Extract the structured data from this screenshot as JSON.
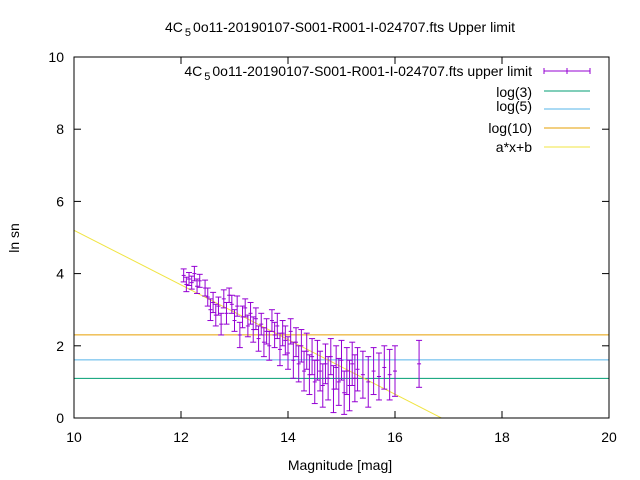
{
  "chart_data": {
    "type": "scatter",
    "title": "4C_5 0o11-20190107-S001-R001-I-024707.fts Upper limit",
    "title_parts": {
      "prefix": "4C",
      "subscript": "5",
      "suffix": "0o11-20190107-S001-R001-I-024707.fts Upper limit"
    },
    "xlabel": "Magnitude [mag]",
    "ylabel": "ln sn",
    "xlim": [
      10,
      20
    ],
    "ylim": [
      0,
      10
    ],
    "xticks": [
      10,
      12,
      14,
      16,
      18,
      20
    ],
    "yticks": [
      0,
      2,
      4,
      6,
      8,
      10
    ],
    "grid": false,
    "legend_position": "top-right",
    "colors": {
      "points": "#9400d3",
      "log3": "#009e73",
      "log5": "#56b4e9",
      "log10": "#e69f00",
      "fit": "#f0e442"
    },
    "legend": [
      {
        "key": "points",
        "label_parts": {
          "prefix": "4C",
          "subscript": "5",
          "suffix": "0o11-20190107-S001-R001-I-024707.fts upper limit"
        },
        "style": "errorbar"
      },
      {
        "key": "log3",
        "label": "log(3)",
        "style": "line"
      },
      {
        "key": "log5",
        "label": "log(5)",
        "style": "line"
      },
      {
        "key": "log10",
        "label": "log(10)",
        "style": "line"
      },
      {
        "key": "fit",
        "label": "a*x+b",
        "style": "line"
      }
    ],
    "hlines": {
      "log3": 1.0986,
      "log5": 1.6094,
      "log10": 2.3026
    },
    "fit_line": {
      "slope": -0.757,
      "intercept": 12.77
    },
    "series": [
      {
        "name": "4C 5 0o11-20190107-S001-R001-I-024707.fts upper limit",
        "points": [
          [
            12.05,
            3.95,
            0.18
          ],
          [
            12.1,
            3.7,
            0.2
          ],
          [
            12.15,
            3.85,
            0.18
          ],
          [
            12.2,
            3.75,
            0.18
          ],
          [
            12.25,
            4.0,
            0.2
          ],
          [
            12.3,
            3.65,
            0.2
          ],
          [
            12.35,
            3.8,
            0.18
          ],
          [
            12.45,
            3.6,
            0.22
          ],
          [
            12.5,
            3.35,
            0.25
          ],
          [
            12.55,
            3.0,
            0.3
          ],
          [
            12.6,
            3.2,
            0.28
          ],
          [
            12.65,
            2.85,
            0.3
          ],
          [
            12.7,
            3.1,
            0.25
          ],
          [
            12.75,
            2.6,
            0.3
          ],
          [
            12.8,
            3.3,
            0.25
          ],
          [
            12.85,
            2.9,
            0.3
          ],
          [
            12.9,
            3.4,
            0.2
          ],
          [
            12.95,
            3.15,
            0.25
          ],
          [
            13.0,
            2.7,
            0.3
          ],
          [
            13.05,
            3.1,
            0.28
          ],
          [
            13.1,
            2.3,
            0.35
          ],
          [
            13.15,
            2.8,
            0.3
          ],
          [
            13.2,
            3.05,
            0.25
          ],
          [
            13.25,
            2.55,
            0.3
          ],
          [
            13.3,
            2.9,
            0.3
          ],
          [
            13.35,
            2.45,
            0.35
          ],
          [
            13.4,
            2.75,
            0.3
          ],
          [
            13.45,
            2.2,
            0.35
          ],
          [
            13.5,
            2.6,
            0.3
          ],
          [
            13.55,
            2.1,
            0.4
          ],
          [
            13.6,
            2.4,
            0.35
          ],
          [
            13.65,
            2.0,
            0.4
          ],
          [
            13.7,
            2.7,
            0.3
          ],
          [
            13.75,
            2.3,
            0.35
          ],
          [
            13.8,
            2.55,
            0.35
          ],
          [
            13.85,
            1.9,
            0.45
          ],
          [
            13.9,
            2.35,
            0.35
          ],
          [
            13.95,
            2.15,
            0.4
          ],
          [
            14.0,
            1.8,
            0.45
          ],
          [
            14.05,
            2.4,
            0.35
          ],
          [
            14.1,
            1.6,
            0.5
          ],
          [
            14.15,
            2.1,
            0.4
          ],
          [
            14.2,
            1.5,
            0.5
          ],
          [
            14.25,
            2.0,
            0.45
          ],
          [
            14.3,
            1.3,
            0.55
          ],
          [
            14.35,
            1.85,
            0.5
          ],
          [
            14.4,
            1.2,
            0.55
          ],
          [
            14.45,
            1.7,
            0.5
          ],
          [
            14.5,
            1.0,
            0.6
          ],
          [
            14.55,
            1.6,
            0.55
          ],
          [
            14.6,
            1.3,
            0.55
          ],
          [
            14.65,
            0.9,
            0.6
          ],
          [
            14.7,
            1.5,
            0.55
          ],
          [
            14.75,
            1.1,
            0.6
          ],
          [
            14.8,
            1.7,
            0.5
          ],
          [
            14.85,
            0.8,
            0.65
          ],
          [
            14.9,
            1.4,
            0.6
          ],
          [
            14.95,
            1.0,
            0.65
          ],
          [
            15.0,
            1.6,
            0.55
          ],
          [
            15.05,
            0.7,
            0.6
          ],
          [
            15.1,
            1.3,
            0.65
          ],
          [
            15.15,
            0.9,
            0.7
          ],
          [
            15.2,
            1.5,
            0.6
          ],
          [
            15.25,
            1.1,
            0.65
          ],
          [
            15.3,
            1.35,
            0.6
          ],
          [
            15.4,
            1.2,
            0.65
          ],
          [
            15.5,
            1.0,
            0.7
          ],
          [
            15.6,
            1.3,
            0.65
          ],
          [
            15.7,
            1.15,
            0.65
          ],
          [
            15.8,
            1.4,
            0.6
          ],
          [
            15.9,
            1.2,
            0.7
          ],
          [
            16.0,
            1.3,
            0.7
          ],
          [
            16.45,
            1.5,
            0.65
          ]
        ]
      }
    ]
  }
}
